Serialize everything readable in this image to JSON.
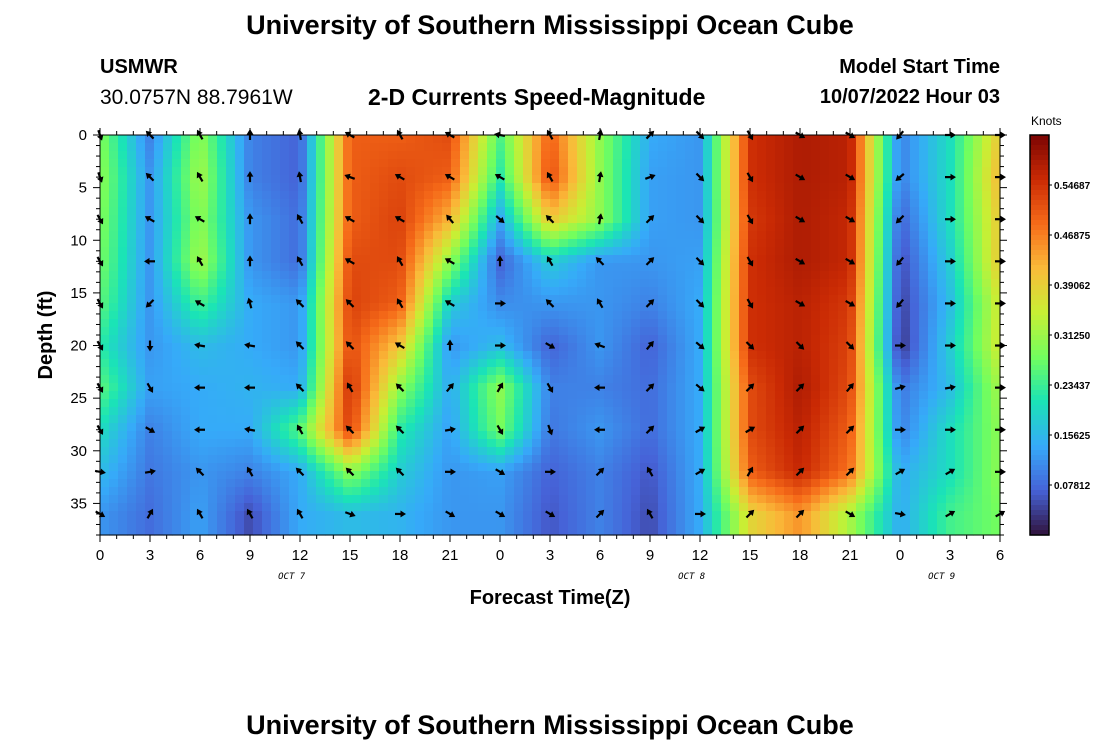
{
  "page": {
    "title": "University of Southern Mississippi Ocean Cube",
    "footer_title": "University of Southern Mississippi Ocean Cube",
    "station": "USMWR",
    "coords": "30.0757N  88.7961W",
    "start_label": "Model Start Time",
    "start_value": "10/07/2022 Hour 03"
  },
  "colors": {
    "scale": [
      "#30123b",
      "#4662d7",
      "#36aaf9",
      "#1ae4b6",
      "#72fe5e",
      "#c8ef34",
      "#faba39",
      "#f66b19",
      "#ca2a04",
      "#7a0403"
    ]
  },
  "chart_data": {
    "type": "heatmap",
    "title": "2-D Currents Speed-Magnitude",
    "xlabel": "Forecast Time(Z)",
    "ylabel": "Depth (ft)",
    "x_ticks": [
      "0",
      "3",
      "6",
      "9",
      "12",
      "15",
      "18",
      "21",
      "0",
      "3",
      "6",
      "9",
      "12",
      "15",
      "18",
      "21",
      "0",
      "3",
      "6"
    ],
    "x_range_hours": [
      0,
      54
    ],
    "date_labels": [
      {
        "text": "OCT 7",
        "hour": 11.5
      },
      {
        "text": "OCT 8",
        "hour": 35.5
      },
      {
        "text": "OCT 9",
        "hour": 50.5
      }
    ],
    "y_ticks": [
      0,
      5,
      10,
      15,
      20,
      25,
      30,
      35
    ],
    "ylim": [
      0,
      38
    ],
    "colorbar": {
      "label": "Knots",
      "range": [
        0,
        0.625
      ],
      "ticks": [
        "0.07812",
        "0.15625",
        "0.23437",
        "0.31250",
        "0.39062",
        "0.46875",
        "0.54687"
      ],
      "tick_values": [
        0.078125,
        0.15625,
        0.234375,
        0.3125,
        0.390625,
        0.46875,
        0.546875
      ]
    },
    "grid_hours": [
      0,
      3,
      6,
      9,
      12,
      15,
      18,
      21,
      24,
      27,
      30,
      33,
      36,
      39,
      42,
      45,
      48,
      51,
      54
    ],
    "grid_depths": [
      0,
      4,
      8,
      12,
      16,
      20,
      24,
      28,
      32,
      36
    ],
    "speed": [
      [
        0.29,
        0.1,
        0.3,
        0.1,
        0.07,
        0.5,
        0.5,
        0.52,
        0.25,
        0.5,
        0.3,
        0.14,
        0.12,
        0.55,
        0.58,
        0.57,
        0.1,
        0.2,
        0.4
      ],
      [
        0.3,
        0.12,
        0.32,
        0.1,
        0.07,
        0.5,
        0.52,
        0.5,
        0.22,
        0.52,
        0.3,
        0.13,
        0.12,
        0.55,
        0.58,
        0.57,
        0.1,
        0.2,
        0.42
      ],
      [
        0.29,
        0.12,
        0.3,
        0.12,
        0.08,
        0.5,
        0.53,
        0.42,
        0.14,
        0.4,
        0.3,
        0.13,
        0.12,
        0.54,
        0.58,
        0.56,
        0.07,
        0.2,
        0.4
      ],
      [
        0.28,
        0.12,
        0.32,
        0.12,
        0.08,
        0.52,
        0.52,
        0.3,
        0.07,
        0.18,
        0.12,
        0.12,
        0.13,
        0.55,
        0.58,
        0.56,
        0.05,
        0.18,
        0.4
      ],
      [
        0.26,
        0.12,
        0.24,
        0.14,
        0.12,
        0.53,
        0.5,
        0.18,
        0.11,
        0.12,
        0.12,
        0.1,
        0.14,
        0.55,
        0.57,
        0.54,
        0.04,
        0.16,
        0.36
      ],
      [
        0.22,
        0.12,
        0.16,
        0.14,
        0.12,
        0.52,
        0.4,
        0.12,
        0.16,
        0.07,
        0.12,
        0.07,
        0.14,
        0.55,
        0.57,
        0.53,
        0.03,
        0.18,
        0.36
      ],
      [
        0.26,
        0.13,
        0.14,
        0.15,
        0.14,
        0.55,
        0.3,
        0.14,
        0.3,
        0.1,
        0.1,
        0.08,
        0.14,
        0.52,
        0.58,
        0.52,
        0.09,
        0.16,
        0.32
      ],
      [
        0.2,
        0.1,
        0.14,
        0.14,
        0.26,
        0.53,
        0.22,
        0.13,
        0.28,
        0.09,
        0.12,
        0.08,
        0.14,
        0.52,
        0.57,
        0.5,
        0.1,
        0.2,
        0.3
      ],
      [
        0.16,
        0.09,
        0.12,
        0.1,
        0.14,
        0.3,
        0.18,
        0.12,
        0.13,
        0.07,
        0.1,
        0.06,
        0.14,
        0.5,
        0.56,
        0.48,
        0.14,
        0.2,
        0.3
      ],
      [
        0.12,
        0.08,
        0.13,
        0.05,
        0.14,
        0.16,
        0.15,
        0.12,
        0.12,
        0.06,
        0.1,
        0.05,
        0.14,
        0.38,
        0.45,
        0.32,
        0.14,
        0.24,
        0.28
      ]
    ],
    "direction_deg": [
      [
        160,
        315,
        330,
        0,
        350,
        300,
        330,
        300,
        280,
        330,
        10,
        45,
        135,
        150,
        120,
        120,
        220,
        90,
        90
      ],
      [
        160,
        315,
        330,
        0,
        350,
        290,
        300,
        300,
        300,
        330,
        10,
        70,
        135,
        150,
        120,
        120,
        230,
        90,
        90
      ],
      [
        150,
        300,
        300,
        0,
        330,
        300,
        300,
        320,
        130,
        315,
        10,
        45,
        135,
        150,
        120,
        120,
        225,
        90,
        90
      ],
      [
        150,
        270,
        330,
        0,
        330,
        300,
        330,
        300,
        0,
        330,
        315,
        45,
        135,
        150,
        120,
        120,
        220,
        90,
        90
      ],
      [
        150,
        225,
        300,
        345,
        315,
        315,
        330,
        300,
        90,
        315,
        330,
        45,
        135,
        150,
        120,
        120,
        220,
        90,
        90
      ],
      [
        150,
        180,
        280,
        280,
        315,
        315,
        300,
        0,
        90,
        120,
        290,
        40,
        130,
        135,
        135,
        135,
        90,
        90,
        90
      ],
      [
        150,
        150,
        270,
        270,
        315,
        330,
        315,
        40,
        30,
        150,
        270,
        45,
        130,
        45,
        45,
        40,
        75,
        80,
        90
      ],
      [
        150,
        120,
        270,
        280,
        330,
        315,
        315,
        80,
        150,
        160,
        270,
        45,
        60,
        60,
        45,
        45,
        90,
        90,
        90
      ],
      [
        100,
        80,
        315,
        330,
        315,
        315,
        315,
        90,
        120,
        90,
        45,
        330,
        60,
        30,
        45,
        45,
        60,
        60,
        90
      ],
      [
        120,
        30,
        330,
        330,
        330,
        110,
        90,
        120,
        120,
        120,
        45,
        330,
        90,
        45,
        45,
        120,
        100,
        60,
        60
      ]
    ]
  }
}
